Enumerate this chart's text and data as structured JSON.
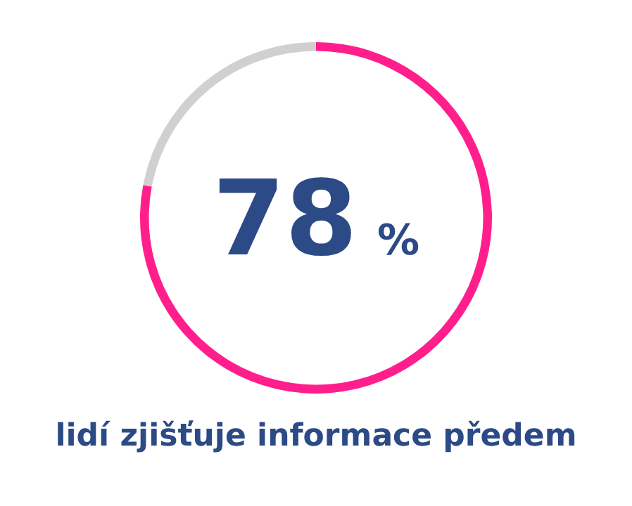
{
  "chart_data": {
    "type": "donut",
    "title": "lidí zjišťuje informace předem",
    "categories": [
      null,
      null
    ],
    "values": [
      78,
      22
    ],
    "colors": [
      "#ff1e8c",
      "#d0d0d0"
    ],
    "value_labels": [
      "78 %",
      null
    ],
    "legend": false
  }
}
